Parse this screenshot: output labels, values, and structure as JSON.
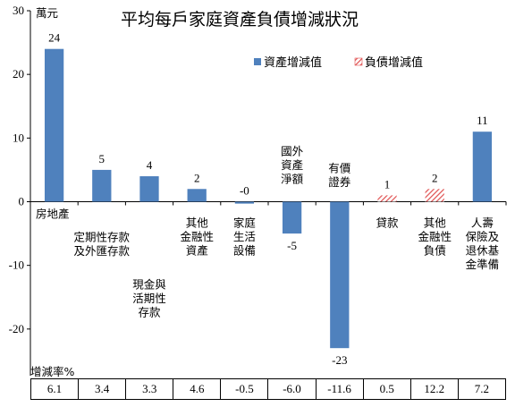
{
  "chart_data": {
    "type": "bar",
    "title": "平均每戶家庭資產負債增減狀況",
    "unit_label": "萬元",
    "ylim": [
      -30,
      30
    ],
    "yticks": [
      30,
      20,
      10,
      0,
      -10,
      -20,
      -30
    ],
    "grid": false,
    "legend_position": "top-right",
    "categories": [
      [
        "房地產"
      ],
      [
        "定期性存款",
        "及外匯存款"
      ],
      [
        "現金與",
        "活期性",
        "存款"
      ],
      [
        "其他",
        "金融性",
        "資產"
      ],
      [
        "家庭",
        "生活",
        "設備"
      ],
      [
        "國外",
        "資產",
        "淨額"
      ],
      [
        "有價",
        "證券"
      ],
      [
        "貸款"
      ],
      [
        "其他",
        "金融性",
        "負債"
      ],
      [
        "人壽",
        "保險及",
        "退休基",
        "金準備"
      ]
    ],
    "series": [
      {
        "name": "資產增減值",
        "color": "#4f81bd",
        "pattern": "solid",
        "values": [
          24,
          5,
          4,
          2,
          -0.3,
          null,
          null,
          null,
          null,
          11
        ],
        "data_labels": [
          "24",
          "5",
          "4",
          "2",
          "-0",
          null,
          null,
          null,
          null,
          "11"
        ]
      },
      {
        "name": "資產增減值",
        "color": "#4f81bd",
        "pattern": "solid",
        "legend": false,
        "values": [
          null,
          null,
          null,
          null,
          null,
          -5,
          -23,
          null,
          null,
          null
        ],
        "data_labels": [
          null,
          null,
          null,
          null,
          null,
          "-5",
          "-23",
          null,
          null,
          null
        ]
      },
      {
        "name": "負債增減值",
        "color": "#e05050",
        "pattern": "hatched",
        "values": [
          null,
          null,
          null,
          null,
          null,
          null,
          null,
          1,
          2,
          null
        ],
        "data_labels": [
          null,
          null,
          null,
          null,
          null,
          null,
          null,
          "1",
          "2",
          null
        ]
      }
    ],
    "rate_table": {
      "label": "增減率%",
      "values": [
        "6.1",
        "3.4",
        "3.3",
        "4.6",
        "-0.5",
        "-6.0",
        "-11.6",
        "0.5",
        "12.2",
        "7.2"
      ]
    }
  }
}
